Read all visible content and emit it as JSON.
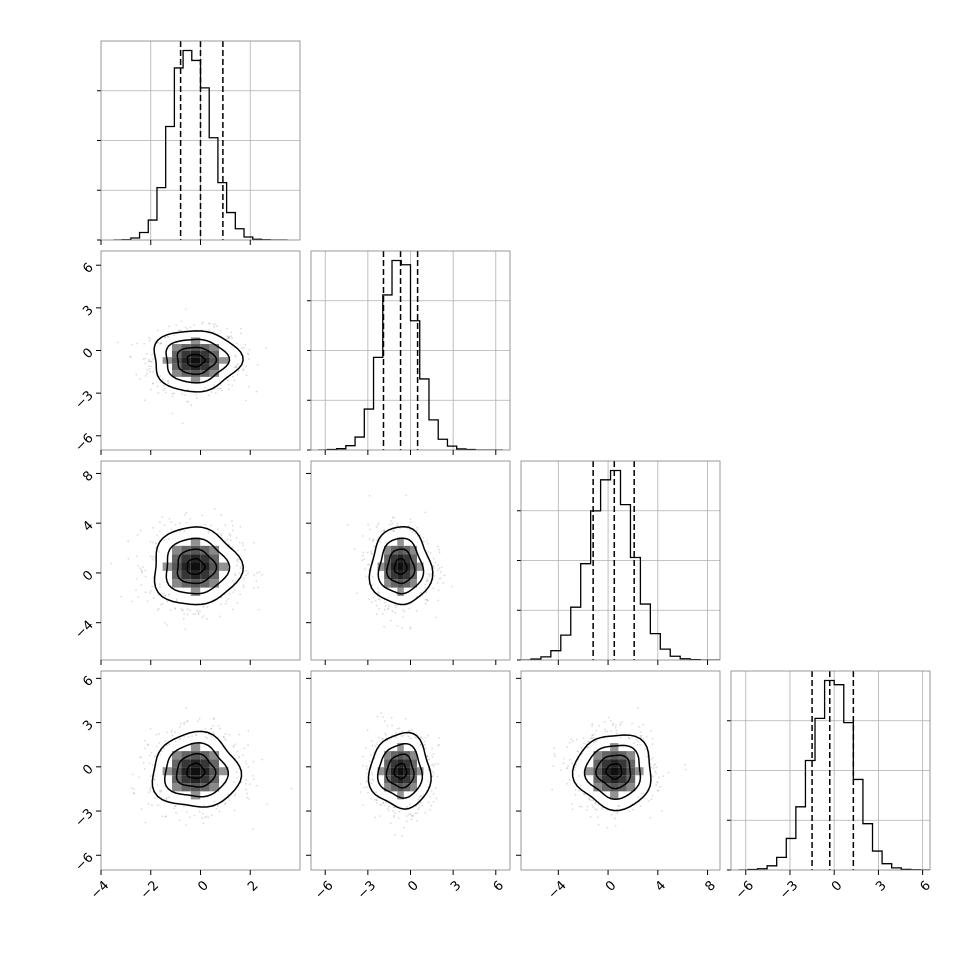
{
  "chart_data": {
    "type": "corner",
    "description_free": true,
    "n_params": 4,
    "grid": true,
    "params": [
      {
        "hist_range": [
          -4,
          4
        ],
        "axis_ticks": [
          -4,
          -2,
          0,
          2
        ],
        "tick_labels": [
          "−4",
          "−2",
          "0",
          "2"
        ],
        "quantiles": [
          -0.8,
          0.0,
          0.9
        ],
        "hist_bins": [
          -3.5,
          -3.15,
          -2.8,
          -2.45,
          -2.1,
          -1.75,
          -1.4,
          -1.05,
          -0.7,
          -0.35,
          0.0,
          0.35,
          0.7,
          1.05,
          1.4,
          1.75,
          2.1,
          2.45,
          2.8,
          3.15,
          3.5
        ],
        "hist_counts": [
          0,
          1,
          8,
          30,
          80,
          210,
          455,
          690,
          760,
          720,
          610,
          410,
          230,
          110,
          45,
          12,
          3,
          1,
          0,
          0
        ]
      },
      {
        "hist_range": [
          -7,
          7
        ],
        "axis_ticks": [
          -6,
          -3,
          0,
          3,
          6
        ],
        "tick_labels": [
          "−6",
          "−3",
          "0",
          "3",
          "6"
        ],
        "quantiles": [
          -1.9,
          -0.7,
          0.5
        ],
        "hist_bins": [
          -6.5,
          -5.85,
          -5.2,
          -4.55,
          -3.9,
          -3.25,
          -2.6,
          -1.95,
          -1.3,
          -0.65,
          0.0,
          0.65,
          1.3,
          1.95,
          2.6,
          3.25,
          3.9,
          4.55,
          5.2,
          5.85,
          6.5
        ],
        "hist_counts": [
          0,
          2,
          6,
          20,
          60,
          190,
          430,
          720,
          880,
          860,
          600,
          330,
          140,
          50,
          18,
          5,
          2,
          0,
          0,
          0
        ]
      },
      {
        "hist_range": [
          -7,
          9
        ],
        "axis_ticks": [
          -4,
          0,
          4,
          8
        ],
        "tick_labels": [
          "−4",
          "0",
          "4",
          "8"
        ],
        "quantiles": [
          -1.2,
          0.5,
          2.1
        ],
        "hist_bins": [
          -7,
          -6.2,
          -5.4,
          -4.6,
          -3.8,
          -3.0,
          -2.2,
          -1.4,
          -0.6,
          0.2,
          1.0,
          1.8,
          2.6,
          3.4,
          4.2,
          5.0,
          5.8,
          6.6,
          7.4,
          8.2,
          9.0
        ],
        "hist_counts": [
          0,
          3,
          10,
          30,
          80,
          170,
          310,
          480,
          580,
          610,
          500,
          330,
          180,
          85,
          35,
          12,
          4,
          1,
          0,
          0
        ]
      },
      {
        "hist_range": [
          -7,
          6.5
        ],
        "axis_ticks": [
          -6,
          -3,
          0,
          3,
          6
        ],
        "tick_labels": [
          "−6",
          "−3",
          "0",
          "3",
          "6"
        ],
        "quantiles": [
          -1.5,
          -0.3,
          1.3
        ],
        "hist_bins": [
          -6.5,
          -5.85,
          -5.2,
          -4.55,
          -3.9,
          -3.25,
          -2.6,
          -1.95,
          -1.3,
          -0.65,
          0.0,
          0.65,
          1.3,
          1.95,
          2.6,
          3.25,
          3.9,
          4.55,
          5.2,
          5.85,
          6.5
        ],
        "hist_counts": [
          0,
          2,
          6,
          20,
          60,
          150,
          300,
          520,
          720,
          900,
          880,
          700,
          430,
          220,
          90,
          30,
          10,
          3,
          1,
          0
        ]
      }
    ],
    "y_axis_ticks_left": [
      null,
      {
        "ticks": [
          -6,
          -3,
          0,
          3,
          6
        ],
        "labels": [
          "−6",
          "−3",
          "0",
          "3",
          "6"
        ],
        "range": [
          -7,
          7
        ]
      },
      {
        "ticks": [
          -4,
          0,
          4,
          8
        ],
        "labels": [
          "−4",
          "0",
          "4",
          "8"
        ],
        "range": [
          -7,
          9
        ]
      },
      {
        "ticks": [
          -6,
          -3,
          0,
          3,
          6
        ],
        "labels": [
          "−6",
          "−3",
          "0",
          "3",
          "6"
        ],
        "range": [
          -7,
          6.5
        ]
      }
    ],
    "centers": [
      -0.2,
      -0.7,
      0.5,
      -0.3
    ],
    "spreads": [
      0.9,
      1.1,
      1.6,
      1.3
    ],
    "contour_levels": [
      0.39,
      0.86,
      1.39,
      1.95
    ]
  }
}
